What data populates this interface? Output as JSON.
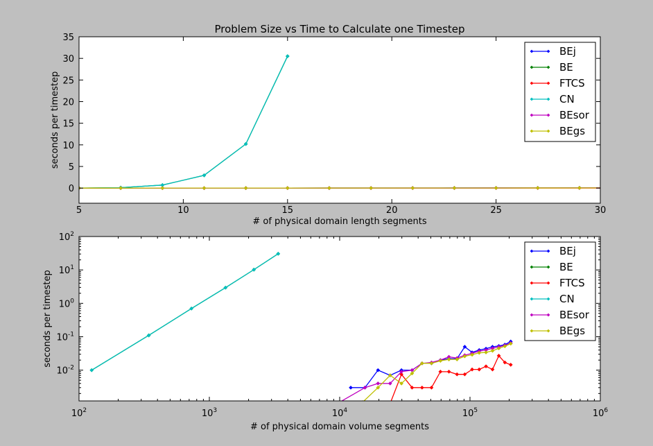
{
  "chart_data": [
    {
      "type": "line",
      "title": "Problem Size vs Time to Calculate one Timestep",
      "xlabel": "# of physical domain length segments",
      "ylabel": "seconds per timestep",
      "xlim": [
        5,
        30
      ],
      "ylim": [
        -3.5,
        35
      ],
      "xscale": "linear",
      "yscale": "linear",
      "xticks": [
        5,
        10,
        15,
        20,
        25,
        30
      ],
      "yticks": [
        0,
        5,
        10,
        15,
        20,
        25,
        30,
        35
      ],
      "grid": false,
      "legend": "top-right",
      "series": [
        {
          "name": "BEj",
          "color": "#0000ff",
          "x": [
            5,
            7,
            9,
            11,
            13,
            15,
            17,
            19,
            21,
            23,
            25,
            27,
            29,
            31
          ],
          "y": [
            0.001,
            0.002,
            0.004,
            0.007,
            0.01,
            0.015,
            0.02,
            0.025,
            0.03,
            0.035,
            0.04,
            0.05,
            0.06,
            0.07
          ]
        },
        {
          "name": "BE",
          "color": "#008000",
          "x": [
            5,
            7,
            9,
            11,
            13,
            15
          ],
          "y": [
            0.0,
            0.11,
            0.7,
            2.95,
            10.2,
            30.5
          ]
        },
        {
          "name": "FTCS",
          "color": "#ff0000",
          "x": [
            5,
            7,
            9,
            11,
            13,
            15,
            17,
            19,
            21,
            23,
            25,
            27,
            29,
            31
          ],
          "y": [
            0.0,
            0.0,
            0.001,
            0.003,
            0.005,
            0.007,
            0.009,
            0.01,
            0.011,
            0.012,
            0.013,
            0.014,
            0.015,
            0.016
          ]
        },
        {
          "name": "CN",
          "color": "#00bfbf",
          "x": [
            5,
            7,
            9,
            11,
            13,
            15
          ],
          "y": [
            0.0,
            0.11,
            0.7,
            2.95,
            10.2,
            30.5
          ]
        },
        {
          "name": "BEsor",
          "color": "#bf00bf",
          "x": [
            5,
            7,
            9,
            11,
            13,
            15,
            17,
            19,
            21,
            23,
            25,
            27,
            29,
            31
          ],
          "y": [
            0.001,
            0.002,
            0.004,
            0.006,
            0.009,
            0.013,
            0.017,
            0.021,
            0.026,
            0.031,
            0.036,
            0.045,
            0.055,
            0.065
          ]
        },
        {
          "name": "BEgs",
          "color": "#bfbf00",
          "x": [
            5,
            7,
            9,
            11,
            13,
            15,
            17,
            19,
            21,
            23,
            25,
            27,
            29,
            31
          ],
          "y": [
            0.001,
            0.002,
            0.003,
            0.005,
            0.008,
            0.012,
            0.016,
            0.02,
            0.024,
            0.028,
            0.033,
            0.04,
            0.05,
            0.06
          ]
        }
      ]
    },
    {
      "type": "line",
      "title": "",
      "xlabel": "# of physical domain volume segments",
      "ylabel": "seconds per timestep",
      "xlim": [
        100,
        1000000
      ],
      "ylim": [
        0.0012,
        100
      ],
      "xscale": "log",
      "yscale": "log",
      "xticks": [
        100,
        1000,
        10000,
        100000,
        1000000
      ],
      "xticklabels": [
        [
          "10",
          "2"
        ],
        [
          "10",
          "3"
        ],
        [
          "10",
          "4"
        ],
        [
          "10",
          "5"
        ],
        [
          "10",
          "6"
        ]
      ],
      "yticks": [
        0.01,
        0.1,
        1,
        10,
        100
      ],
      "yticklabels": [
        [
          "10",
          "-2"
        ],
        [
          "10",
          "-1"
        ],
        [
          "10",
          "0"
        ],
        [
          "10",
          "1"
        ],
        [
          "10",
          "2"
        ]
      ],
      "grid": false,
      "legend": "top-right",
      "series": [
        {
          "name": "BEj",
          "color": "#0000ff",
          "x": [
            12167,
            15625,
            19683,
            24389,
            29791,
            35937,
            42875,
            50653,
            59319,
            68921,
            79507,
            91125,
            103823,
            117649,
            132651,
            148877,
            166375,
            185193,
            205379
          ],
          "y": [
            0.003,
            0.003,
            0.01,
            0.007,
            0.01,
            0.01,
            0.016,
            0.016,
            0.02,
            0.022,
            0.022,
            0.05,
            0.034,
            0.04,
            0.044,
            0.05,
            0.053,
            0.058,
            0.072
          ]
        },
        {
          "name": "BE",
          "color": "#008000",
          "x": [
            125,
            343,
            729,
            1331,
            2197,
            3375
          ],
          "y": [
            0.01,
            0.11,
            0.7,
            2.95,
            10.2,
            30.5
          ]
        },
        {
          "name": "FTCS",
          "color": "#ff0000",
          "x": [
            24389,
            29791,
            35937,
            42875,
            50653,
            59319,
            68921,
            79507,
            91125,
            103823,
            117649,
            132651,
            148877,
            166375,
            185193,
            205379
          ],
          "y": [
            0.001,
            0.0075,
            0.003,
            0.003,
            0.003,
            0.009,
            0.009,
            0.0075,
            0.0075,
            0.0105,
            0.0105,
            0.013,
            0.0105,
            0.027,
            0.017,
            0.0145
          ]
        },
        {
          "name": "CN",
          "color": "#00bfbf",
          "x": [
            125,
            343,
            729,
            1331,
            2197,
            3375
          ],
          "y": [
            0.01,
            0.11,
            0.7,
            2.95,
            10.2,
            30.5
          ]
        },
        {
          "name": "BEsor",
          "color": "#bf00bf",
          "x": [
            10000,
            15625,
            19683,
            24389,
            29791,
            35937,
            42875,
            50653,
            59319,
            68921,
            79507,
            91125,
            103823,
            117649,
            132651,
            148877,
            166375,
            185193,
            205379
          ],
          "y": [
            0.0011,
            0.003,
            0.004,
            0.004,
            0.009,
            0.01,
            0.016,
            0.017,
            0.02,
            0.025,
            0.023,
            0.028,
            0.032,
            0.037,
            0.04,
            0.045,
            0.05,
            0.055,
            0.065
          ]
        },
        {
          "name": "BEgs",
          "color": "#bfbf00",
          "x": [
            15000,
            19683,
            24389,
            29791,
            35937,
            42875,
            50653,
            59319,
            68921,
            79507,
            91125,
            103823,
            117649,
            132651,
            148877,
            166375,
            185193,
            205379
          ],
          "y": [
            0.0011,
            0.003,
            0.007,
            0.004,
            0.008,
            0.016,
            0.016,
            0.019,
            0.021,
            0.021,
            0.026,
            0.029,
            0.033,
            0.034,
            0.038,
            0.045,
            0.052,
            0.062
          ]
        }
      ]
    }
  ]
}
